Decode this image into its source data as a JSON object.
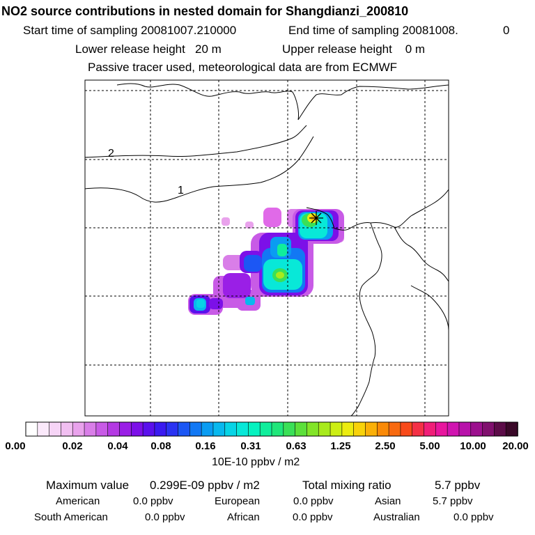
{
  "header": {
    "title": "NO2 source contributions in nested domain for Shangdianzi_200810",
    "start_label": "Start time of sampling 20081007.210000",
    "end_label": "End time of sampling 20081008.",
    "end_suffix": "0",
    "lower_label": "Lower release height   20 m",
    "upper_label": "Upper release height    0 m",
    "note": "Passive tracer used, meteorological data are from ECMWF"
  },
  "map": {
    "contour_labels": [
      "2",
      "1"
    ],
    "station_marker": "station-asterisk"
  },
  "colorbar": {
    "ticks": [
      "0.00",
      "0.02",
      "0.04",
      "0.08",
      "0.16",
      "0.31",
      "0.63",
      "1.25",
      "2.50",
      "5.00",
      "10.00",
      "20.00"
    ],
    "units": "10E-10 ppbv / m2",
    "colors": [
      "#ffffff",
      "#fbe9fb",
      "#f6d4f6",
      "#f1bff1",
      "#e9a2ec",
      "#d97ee8",
      "#c85be6",
      "#b43ae3",
      "#9a1fe6",
      "#7c10e8",
      "#5a10ec",
      "#3a1af0",
      "#2a33f2",
      "#1c57f4",
      "#1278f4",
      "#0a9cf2",
      "#08b8ee",
      "#07d4e6",
      "#08e8d8",
      "#06f2c0",
      "#10ee9c",
      "#20e67a",
      "#3ae057",
      "#5ce03a",
      "#82e428",
      "#a8ea1c",
      "#ccee14",
      "#ecec10",
      "#f8d20a",
      "#fab008",
      "#fa8a08",
      "#f86a10",
      "#f84a1a",
      "#f43046",
      "#f01e78",
      "#e8169e",
      "#d014b0",
      "#b812aa",
      "#9c108e",
      "#80106e",
      "#5c0c48",
      "#3a0828"
    ]
  },
  "stats": {
    "max_label": "Maximum value",
    "max_value": "0.299E-09 ppbv / m2",
    "total_label": "Total mixing ratio",
    "total_value": "5.7 ppbv",
    "regions": [
      {
        "name": "American",
        "value": "0.0 ppbv"
      },
      {
        "name": "European",
        "value": "0.0 ppbv"
      },
      {
        "name": "Asian",
        "value": "5.7 ppbv"
      },
      {
        "name": "South American",
        "value": "0.0 ppbv"
      },
      {
        "name": "African",
        "value": "0.0 ppbv"
      },
      {
        "name": "Australian",
        "value": "0.0 ppbv"
      }
    ]
  }
}
